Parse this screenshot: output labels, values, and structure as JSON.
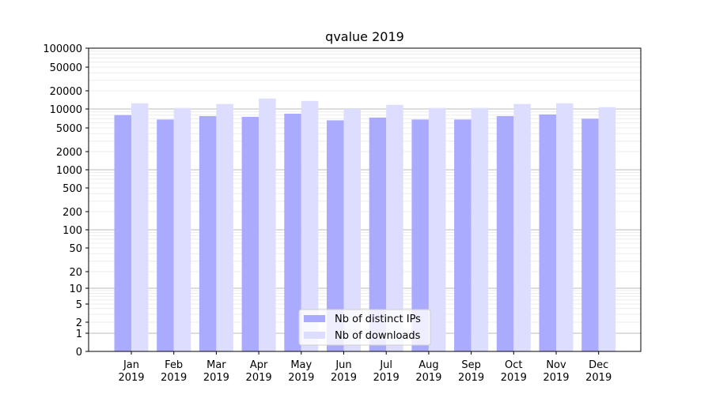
{
  "chart_data": {
    "type": "bar",
    "title": "qvalue 2019",
    "xlabel": "",
    "ylabel": "",
    "yscale": "symlog",
    "ylim": [
      0,
      100000
    ],
    "grid": true,
    "legend_position": "lower center",
    "categories": [
      "Jan\n2019",
      "Feb\n2019",
      "Mar\n2019",
      "Apr\n2019",
      "May\n2019",
      "Jun\n2019",
      "Jul\n2019",
      "Aug\n2019",
      "Sep\n2019",
      "Oct\n2019",
      "Nov\n2019",
      "Dec\n2019"
    ],
    "yticks": [
      0,
      1,
      2,
      5,
      10,
      20,
      50,
      100,
      200,
      500,
      1000,
      2000,
      5000,
      10000,
      20000,
      50000,
      100000
    ],
    "series": [
      {
        "name": "Nb of distinct IPs",
        "color": "#aaaaff",
        "values": [
          8000,
          6800,
          7700,
          7500,
          8400,
          6600,
          7300,
          6800,
          6800,
          7700,
          8200,
          7000
        ]
      },
      {
        "name": "Nb of downloads",
        "color": "#ddddff",
        "values": [
          12400,
          10400,
          12100,
          14900,
          13600,
          10000,
          11700,
          10400,
          10400,
          12100,
          12400,
          10700
        ]
      }
    ]
  }
}
